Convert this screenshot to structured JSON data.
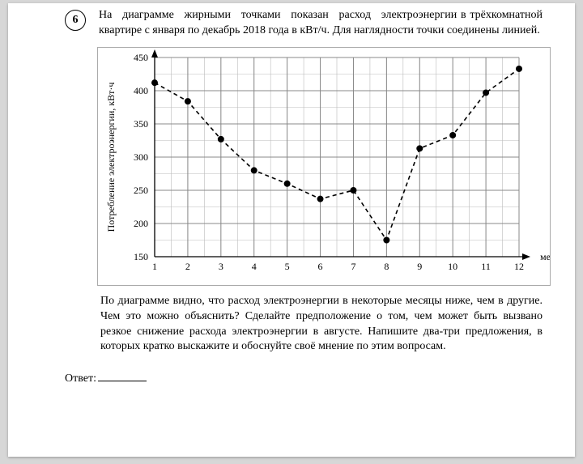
{
  "question_number": "6",
  "intro": {
    "line1": "На диаграмме жирными точками показан расход электроэнергии",
    "rest": "в трёхкомнатной квартире с января по декабрь 2018 года в кВт/ч. Для наглядности точки соединены линией."
  },
  "chart": {
    "type": "line",
    "ylabel": "Потребление электроэнергии, кВт·ч",
    "xlabel": "месяц",
    "xlim": [
      1,
      12
    ],
    "ylim": [
      150,
      450
    ],
    "ytick_step": 50,
    "xtick_step": 1,
    "xsub_per_step": 2,
    "ysub_per_step": 2,
    "grid_color": "#888888",
    "subgrid_color": "#bbbbbb",
    "background_color": "#ffffff",
    "line_style": "dashed",
    "line_width": 1.6,
    "marker_color": "#000000",
    "marker_radius": 4,
    "x": [
      1,
      2,
      3,
      4,
      5,
      6,
      7,
      8,
      9,
      10,
      11,
      12
    ],
    "y": [
      412,
      384,
      327,
      280,
      260,
      237,
      250,
      175,
      313,
      333,
      397,
      433
    ],
    "label_fontsize": 12,
    "tick_fontsize": 12
  },
  "after": "По диаграмме видно, что расход электроэнергии в некоторые месяцы ниже, чем в другие. Чем это можно объяснить? Сделайте предположение о том, чем может быть вызвано резкое снижение расхода электроэнергии в августе. Напишите два-три предложения, в которых кратко выскажите и обоснуйте своё мнение по этим вопросам.",
  "answer_label": "Ответ:"
}
